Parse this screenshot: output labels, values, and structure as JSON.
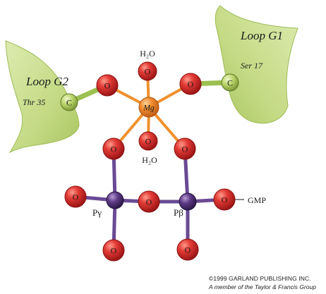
{
  "labels": {
    "loop_g1": "Loop G1",
    "loop_g2": "Loop G2",
    "ser": "Ser 17",
    "thr": "Thr 35",
    "carbon": "C",
    "oxygen": "O",
    "magnesium": "Mg",
    "water_top": "H₂O",
    "water_bottom": "H₂O",
    "p_gamma": "Pγ",
    "p_beta": "Pβ",
    "gmp": "GMP"
  },
  "copyright": {
    "line1": "©1999 GARLAND PUBLISHING INC.",
    "line2": "A member of the Taylor & Francis Group"
  },
  "colors": {
    "loop_fill": "#c9dd8a",
    "loop_dark": "#9fbb55",
    "carbon_fill": "#b9d46a",
    "oxygen_fill": "#e03a36",
    "oxygen_dark": "#a81c1c",
    "magnesium_fill": "#f08a2c",
    "phosphorus_fill": "#5d3b86",
    "bond_coord": "#f0902c",
    "bond_phosphate": "#6a4a94",
    "bond_carbon": "#9cc051"
  }
}
